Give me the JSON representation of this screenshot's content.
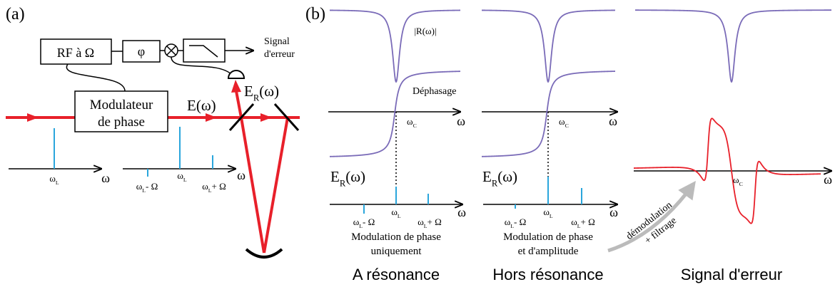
{
  "panel_labels": [
    "(a)",
    "(b)"
  ],
  "setup": {
    "rf": "RF à Ω",
    "phase_shifter": "φ",
    "output": [
      "Signal",
      "d'erreur"
    ],
    "modulator": [
      "Modulateur",
      "de phase"
    ],
    "incident_field": "E(ω)",
    "reflected_field": {
      "base": "E",
      "sub": "R",
      "rest": "(ω)"
    }
  },
  "spectra_a": {
    "carrier": {
      "base": "ω",
      "sub": "L"
    },
    "axis": "ω",
    "lower": {
      "base": "ω",
      "sub": "L",
      "rest": "- Ω"
    },
    "center": {
      "base": "ω",
      "sub": "L"
    },
    "upper": {
      "base": "ω",
      "sub": "L",
      "rest": "+ Ω"
    },
    "axis2": "ω"
  },
  "resonance": {
    "reflectance": "|R(ω)|",
    "phase": "Déphasage",
    "axis": "ω",
    "cavity": {
      "base": "ω",
      "sub": "C"
    },
    "field": {
      "base": "E",
      "sub": "R",
      "rest": "(ω)"
    },
    "lower": {
      "base": "ω",
      "sub": "L",
      "rest": "- Ω"
    },
    "center": {
      "base": "ω",
      "sub": "L"
    },
    "upper": {
      "base": "ω",
      "sub": "L",
      "rest": "+ Ω"
    },
    "axis2": "ω",
    "caption": [
      "Modulation de phase",
      "uniquement"
    ],
    "title": "A résonance"
  },
  "off_resonance": {
    "axis": "ω",
    "cavity": {
      "base": "ω",
      "sub": "C"
    },
    "field": {
      "base": "E",
      "sub": "R",
      "rest": "(ω)"
    },
    "lower": {
      "base": "ω",
      "sub": "L",
      "rest": "- Ω"
    },
    "center": {
      "base": "ω",
      "sub": "L"
    },
    "upper": {
      "base": "ω",
      "sub": "L",
      "rest": "+ Ω"
    },
    "axis2": "ω",
    "caption": [
      "Modulation de phase",
      "et d'amplitude"
    ],
    "title": "Hors résonance"
  },
  "error": {
    "cavity": {
      "base": "ω",
      "sub": "C"
    },
    "axis": "ω",
    "arrow": [
      "démodulation",
      "+ filtrage"
    ],
    "title": "Signal d'erreur"
  }
}
